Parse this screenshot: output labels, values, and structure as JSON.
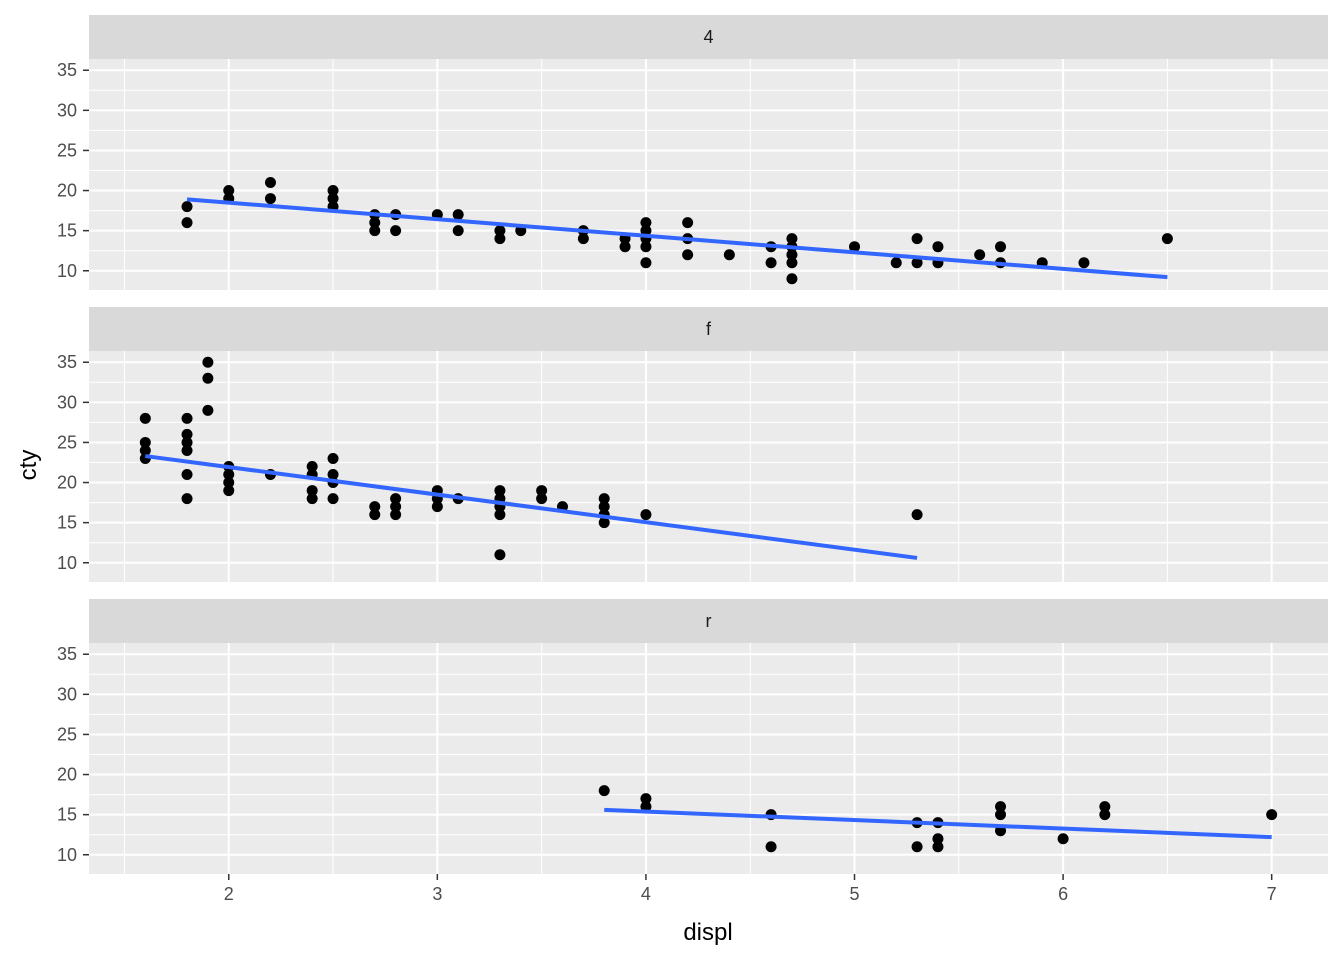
{
  "chart_data": {
    "type": "scatter",
    "xlabel": "displ",
    "ylabel": "cty",
    "facet_labels": [
      "4",
      "f",
      "r"
    ],
    "xlim": [
      1.33,
      7.27
    ],
    "ylim": [
      7.6,
      36.4
    ],
    "x_ticks": [
      2,
      3,
      4,
      5,
      6,
      7
    ],
    "y_ticks": [
      10,
      15,
      20,
      25,
      30,
      35
    ],
    "grid": true,
    "colors": {
      "panel_bg": "#ebebeb",
      "strip_bg": "#d9d9d9",
      "grid_major": "#ffffff",
      "point": "#000000",
      "trend": "#3366ff"
    },
    "panels": [
      {
        "facet": "4",
        "points": [
          [
            1.8,
            18
          ],
          [
            1.8,
            16
          ],
          [
            2.0,
            20
          ],
          [
            2.0,
            19
          ],
          [
            2.2,
            21
          ],
          [
            2.2,
            19
          ],
          [
            2.5,
            20
          ],
          [
            2.5,
            19
          ],
          [
            2.5,
            18
          ],
          [
            2.7,
            17
          ],
          [
            2.7,
            16
          ],
          [
            2.7,
            15
          ],
          [
            2.8,
            17
          ],
          [
            2.8,
            15
          ],
          [
            3.0,
            17
          ],
          [
            3.1,
            17
          ],
          [
            3.1,
            15
          ],
          [
            3.3,
            15
          ],
          [
            3.3,
            14
          ],
          [
            3.4,
            15
          ],
          [
            3.7,
            15
          ],
          [
            3.7,
            14
          ],
          [
            3.9,
            14
          ],
          [
            3.9,
            13
          ],
          [
            4.0,
            16
          ],
          [
            4.0,
            15
          ],
          [
            4.0,
            14
          ],
          [
            4.0,
            13
          ],
          [
            4.0,
            11
          ],
          [
            4.2,
            16
          ],
          [
            4.2,
            14
          ],
          [
            4.2,
            12
          ],
          [
            4.4,
            12
          ],
          [
            4.6,
            13
          ],
          [
            4.6,
            11
          ],
          [
            4.7,
            14
          ],
          [
            4.7,
            13
          ],
          [
            4.7,
            12
          ],
          [
            4.7,
            11
          ],
          [
            4.7,
            9
          ],
          [
            5.0,
            13
          ],
          [
            5.2,
            11
          ],
          [
            5.3,
            14
          ],
          [
            5.3,
            11
          ],
          [
            5.4,
            13
          ],
          [
            5.4,
            11
          ],
          [
            5.6,
            12
          ],
          [
            5.7,
            13
          ],
          [
            5.7,
            11
          ],
          [
            5.9,
            11
          ],
          [
            6.1,
            11
          ],
          [
            6.5,
            14
          ]
        ],
        "trend": [
          [
            1.8,
            18.9
          ],
          [
            6.5,
            9.2
          ]
        ]
      },
      {
        "facet": "f",
        "points": [
          [
            1.6,
            28
          ],
          [
            1.6,
            25
          ],
          [
            1.6,
            24
          ],
          [
            1.6,
            23
          ],
          [
            1.8,
            28
          ],
          [
            1.8,
            26
          ],
          [
            1.8,
            25
          ],
          [
            1.8,
            24
          ],
          [
            1.8,
            21
          ],
          [
            1.8,
            18
          ],
          [
            1.9,
            35
          ],
          [
            1.9,
            33
          ],
          [
            1.9,
            29
          ],
          [
            2.0,
            22
          ],
          [
            2.0,
            21
          ],
          [
            2.0,
            20
          ],
          [
            2.0,
            19
          ],
          [
            2.2,
            21
          ],
          [
            2.4,
            22
          ],
          [
            2.4,
            21
          ],
          [
            2.4,
            19
          ],
          [
            2.4,
            18
          ],
          [
            2.5,
            23
          ],
          [
            2.5,
            21
          ],
          [
            2.5,
            20
          ],
          [
            2.5,
            18
          ],
          [
            2.7,
            17
          ],
          [
            2.7,
            16
          ],
          [
            2.8,
            18
          ],
          [
            2.8,
            17
          ],
          [
            2.8,
            16
          ],
          [
            3.0,
            19
          ],
          [
            3.0,
            18
          ],
          [
            3.0,
            17
          ],
          [
            3.1,
            18
          ],
          [
            3.3,
            19
          ],
          [
            3.3,
            18
          ],
          [
            3.3,
            17
          ],
          [
            3.3,
            16
          ],
          [
            3.3,
            11
          ],
          [
            3.5,
            19
          ],
          [
            3.5,
            18
          ],
          [
            3.6,
            17
          ],
          [
            3.8,
            18
          ],
          [
            3.8,
            17
          ],
          [
            3.8,
            16
          ],
          [
            3.8,
            15
          ],
          [
            4.0,
            16
          ],
          [
            5.3,
            16
          ]
        ],
        "trend": [
          [
            1.6,
            23.3
          ],
          [
            5.3,
            10.6
          ]
        ]
      },
      {
        "facet": "r",
        "points": [
          [
            3.8,
            18
          ],
          [
            4.0,
            17
          ],
          [
            4.0,
            16
          ],
          [
            4.6,
            15
          ],
          [
            4.6,
            11
          ],
          [
            5.3,
            14
          ],
          [
            5.3,
            11
          ],
          [
            5.4,
            14
          ],
          [
            5.4,
            12
          ],
          [
            5.4,
            11
          ],
          [
            5.7,
            16
          ],
          [
            5.7,
            15
          ],
          [
            5.7,
            13
          ],
          [
            6.0,
            12
          ],
          [
            6.2,
            16
          ],
          [
            6.2,
            15
          ],
          [
            7.0,
            15
          ]
        ],
        "trend": [
          [
            3.8,
            15.6
          ],
          [
            7.0,
            12.2
          ]
        ]
      }
    ]
  }
}
